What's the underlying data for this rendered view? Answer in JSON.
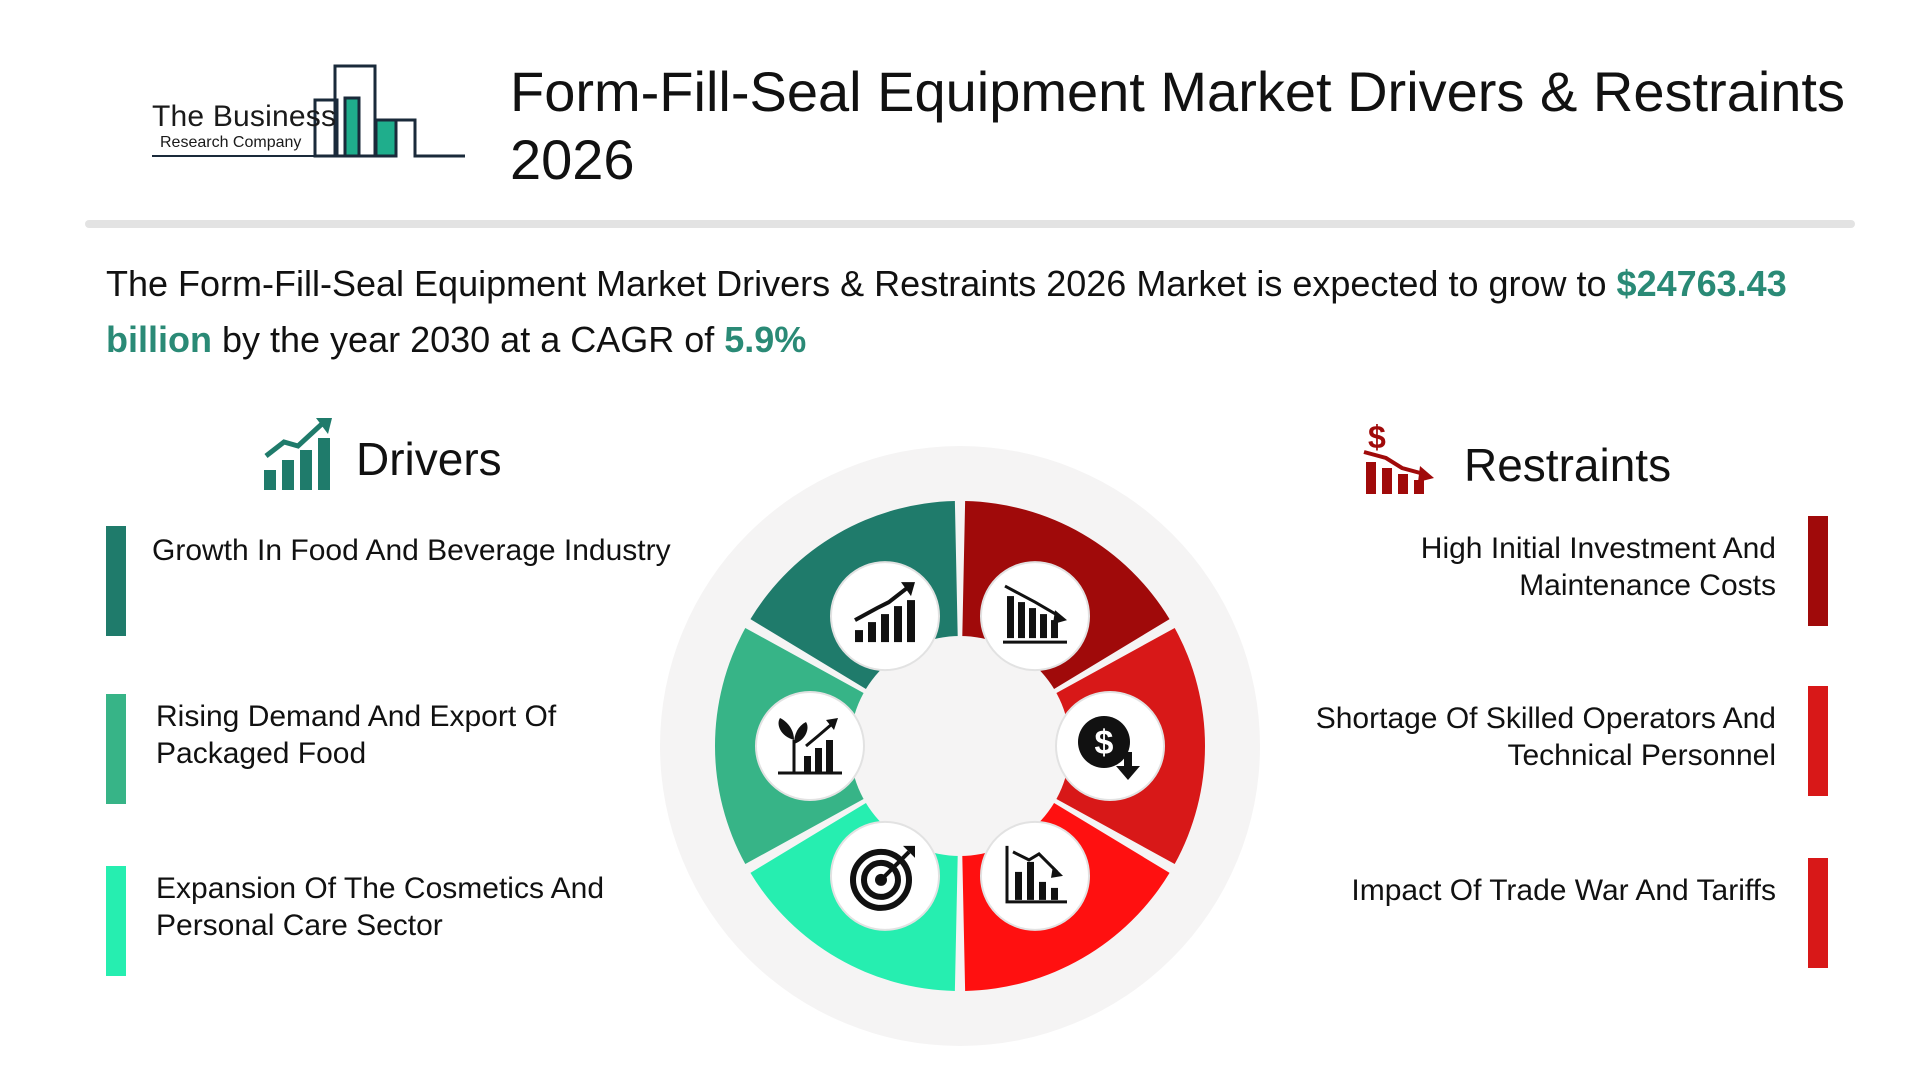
{
  "logo": {
    "line1": "The Business",
    "line2": "Research Company"
  },
  "title": "Form-Fill-Seal Equipment Market Drivers & Restraints 2026",
  "summary": {
    "text_before": "The Form-Fill-Seal Equipment Market Drivers & Restraints 2026 Market is expected to grow to ",
    "value": "$24763.43 billion",
    "text_middle": " by the year 2030 at a CAGR of ",
    "cagr": "5.9%"
  },
  "drivers": {
    "heading": "Drivers",
    "icon": "growth-chart-icon",
    "items": [
      {
        "label": "Growth In Food And Beverage Industry",
        "color": "#1f7b6b"
      },
      {
        "label": "Rising Demand And Export Of Packaged Food",
        "color": "#37b487"
      },
      {
        "label": "Expansion Of The Cosmetics And Personal Care Sector",
        "color": "#26eeb0"
      }
    ]
  },
  "restraints": {
    "heading": "Restraints",
    "icon": "declining-dollar-icon",
    "items": [
      {
        "label": "High Initial Investment And Maintenance Costs",
        "color": "#a00a0a"
      },
      {
        "label": "Shortage Of Skilled Operators And Technical Personnel",
        "color": "#d81818"
      },
      {
        "label": "Impact Of Trade War And Tariffs",
        "color": "#d81818"
      }
    ]
  },
  "wheel": {
    "segments": [
      {
        "name": "driver-1",
        "color": "#1f7b6b",
        "icon": "rising-bars-icon"
      },
      {
        "name": "driver-2",
        "color": "#37b487",
        "icon": "plant-growth-chart-icon"
      },
      {
        "name": "driver-3",
        "color": "#26eeb0",
        "icon": "target-icon"
      },
      {
        "name": "restraint-1",
        "color": "#a00a0a",
        "icon": "falling-bars-icon"
      },
      {
        "name": "restraint-2",
        "color": "#d81818",
        "icon": "dollar-down-icon"
      },
      {
        "name": "restraint-3",
        "color": "#ff1010",
        "icon": "declining-line-chart-icon"
      }
    ]
  },
  "colors": {
    "accent": "#2a8a76",
    "driver_dark": "#1f7b6b",
    "restraint_dark": "#a00a0a"
  }
}
